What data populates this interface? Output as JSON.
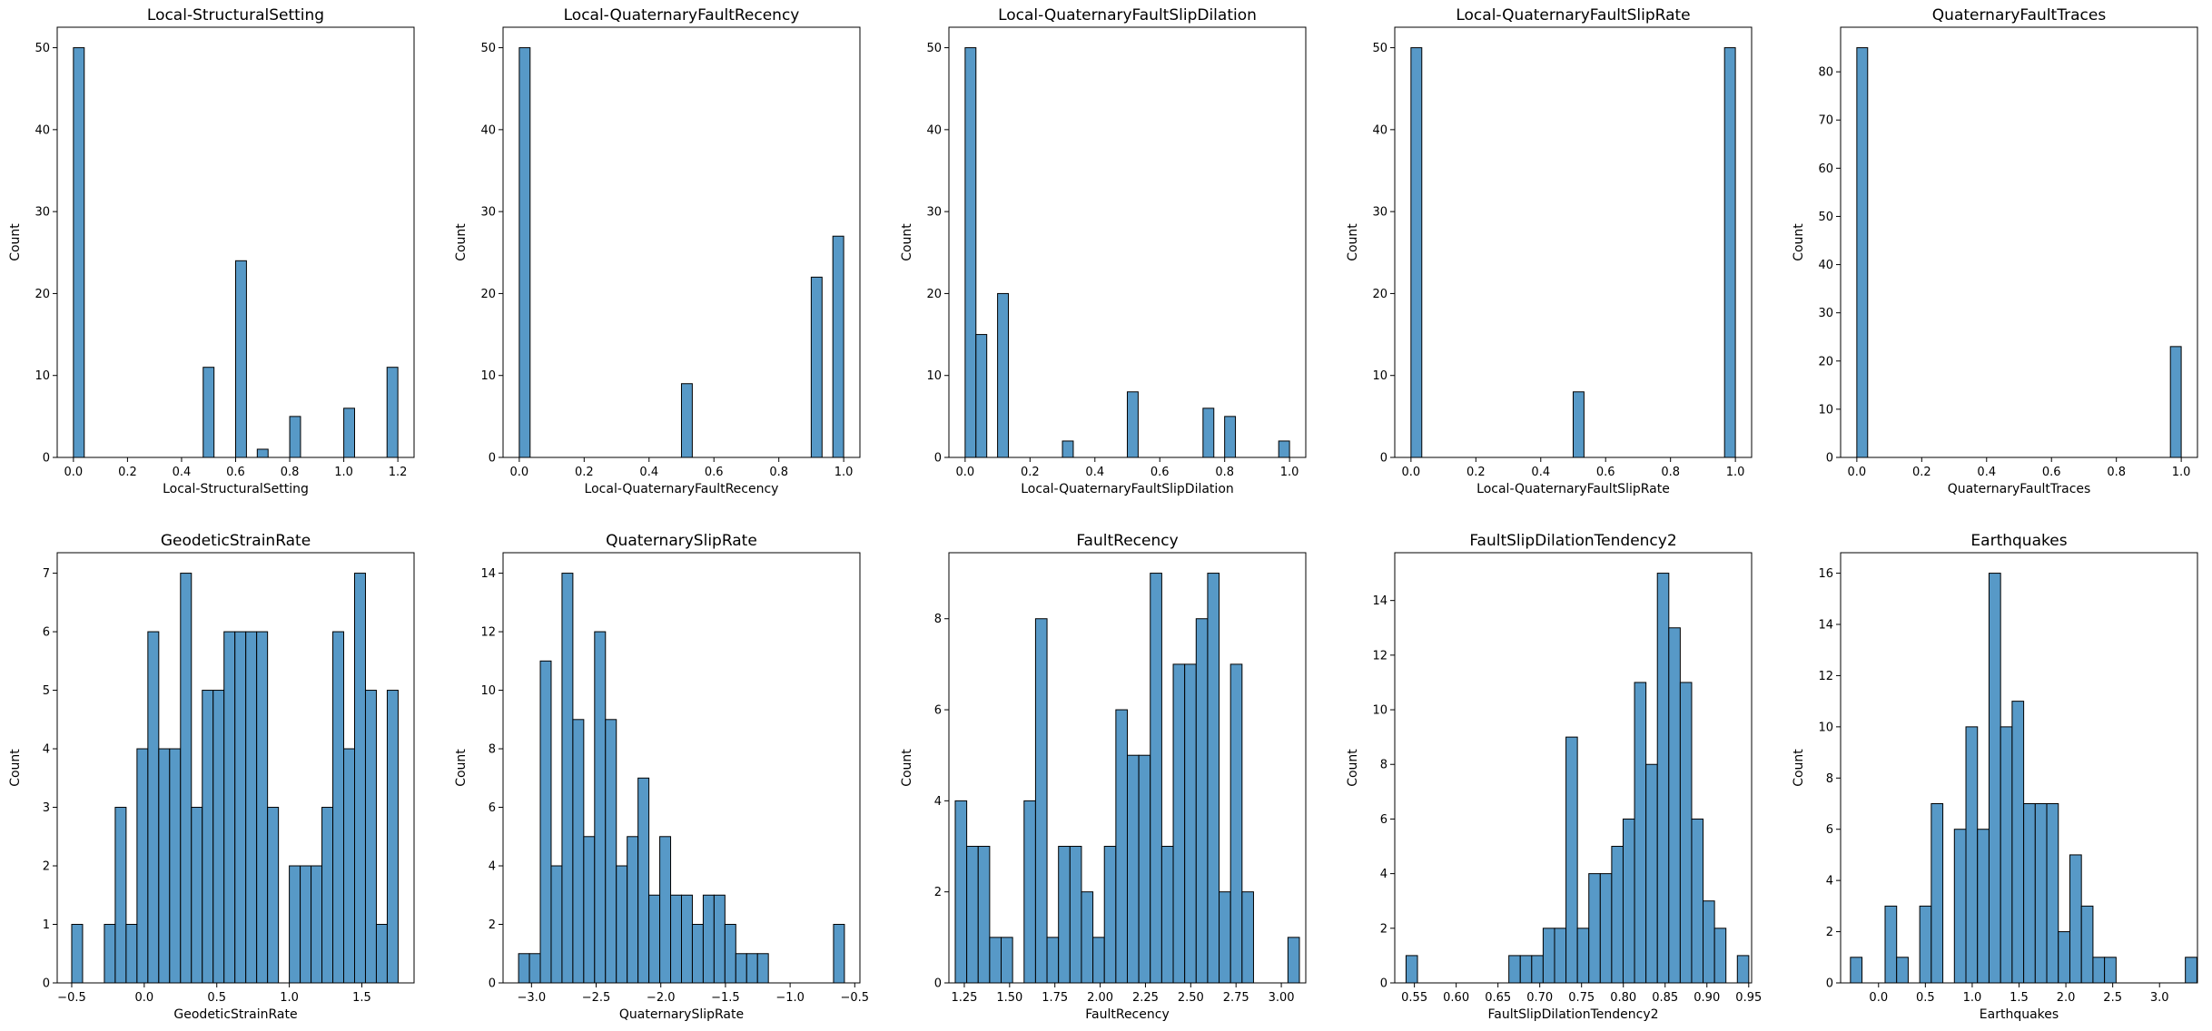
{
  "figure": {
    "layout": "2 rows x 5 columns of histograms",
    "bar_color": "#5799c7",
    "bar_edge_color": "#000000"
  },
  "chart_data": [
    {
      "type": "bar",
      "title": "Local-StructuralSetting",
      "xlabel": "Local-StructuralSetting",
      "ylabel": "Count",
      "xlim": [
        -0.06,
        1.26
      ],
      "ylim": [
        0,
        52.5
      ],
      "xticks": [
        0.0,
        0.2,
        0.4,
        0.6,
        0.8,
        1.0,
        1.2
      ],
      "xtick_labels": [
        "0.0",
        "0.2",
        "0.4",
        "0.6",
        "0.8",
        "1.0",
        "1.2"
      ],
      "yticks": [
        0,
        10,
        20,
        30,
        40,
        50
      ],
      "ytick_labels": [
        "0",
        "10",
        "20",
        "30",
        "40",
        "50"
      ],
      "bin_start": 0.0,
      "bin_width": 0.04,
      "counts": [
        50,
        0,
        0,
        0,
        0,
        0,
        0,
        0,
        0,
        0,
        0,
        0,
        11,
        0,
        0,
        24,
        0,
        1,
        0,
        0,
        5,
        0,
        0,
        0,
        0,
        6,
        0,
        0,
        0,
        11
      ]
    },
    {
      "type": "bar",
      "title": "Local-QuaternaryFaultRecency",
      "xlabel": "Local-QuaternaryFaultRecency",
      "ylabel": "Count",
      "xlim": [
        -0.05,
        1.05
      ],
      "ylim": [
        0,
        52.5
      ],
      "xticks": [
        0.0,
        0.2,
        0.4,
        0.6,
        0.8,
        1.0
      ],
      "xtick_labels": [
        "0.0",
        "0.2",
        "0.4",
        "0.6",
        "0.8",
        "1.0"
      ],
      "yticks": [
        0,
        10,
        20,
        30,
        40,
        50
      ],
      "ytick_labels": [
        "0",
        "10",
        "20",
        "30",
        "40",
        "50"
      ],
      "bin_start": 0.0,
      "bin_width": 0.03333,
      "counts": [
        50,
        0,
        0,
        0,
        0,
        0,
        0,
        0,
        0,
        0,
        0,
        0,
        0,
        0,
        0,
        9,
        0,
        0,
        0,
        0,
        0,
        0,
        0,
        0,
        0,
        0,
        0,
        22,
        0,
        27
      ]
    },
    {
      "type": "bar",
      "title": "Local-QuaternaryFaultSlipDilation",
      "xlabel": "Local-QuaternaryFaultSlipDilation",
      "ylabel": "Count",
      "xlim": [
        -0.05,
        1.05
      ],
      "ylim": [
        0,
        52.5
      ],
      "xticks": [
        0.0,
        0.2,
        0.4,
        0.6,
        0.8,
        1.0
      ],
      "xtick_labels": [
        "0.0",
        "0.2",
        "0.4",
        "0.6",
        "0.8",
        "1.0"
      ],
      "yticks": [
        0,
        10,
        20,
        30,
        40,
        50
      ],
      "ytick_labels": [
        "0",
        "10",
        "20",
        "30",
        "40",
        "50"
      ],
      "bin_start": 0.0,
      "bin_width": 0.03333,
      "counts": [
        50,
        15,
        0,
        20,
        0,
        0,
        0,
        0,
        0,
        2,
        0,
        0,
        0,
        0,
        0,
        8,
        0,
        0,
        0,
        0,
        0,
        0,
        6,
        0,
        5,
        0,
        0,
        0,
        0,
        2
      ]
    },
    {
      "type": "bar",
      "title": "Local-QuaternaryFaultSlipRate",
      "xlabel": "Local-QuaternaryFaultSlipRate",
      "ylabel": "Count",
      "xlim": [
        -0.05,
        1.05
      ],
      "ylim": [
        0,
        52.5
      ],
      "xticks": [
        0.0,
        0.2,
        0.4,
        0.6,
        0.8,
        1.0
      ],
      "xtick_labels": [
        "0.0",
        "0.2",
        "0.4",
        "0.6",
        "0.8",
        "1.0"
      ],
      "yticks": [
        0,
        10,
        20,
        30,
        40,
        50
      ],
      "ytick_labels": [
        "0",
        "10",
        "20",
        "30",
        "40",
        "50"
      ],
      "bin_start": 0.0,
      "bin_width": 0.03333,
      "counts": [
        50,
        0,
        0,
        0,
        0,
        0,
        0,
        0,
        0,
        0,
        0,
        0,
        0,
        0,
        0,
        8,
        0,
        0,
        0,
        0,
        0,
        0,
        0,
        0,
        0,
        0,
        0,
        0,
        0,
        50
      ]
    },
    {
      "type": "bar",
      "title": "QuaternaryFaultTraces",
      "xlabel": "QuaternaryFaultTraces",
      "ylabel": "Count",
      "xlim": [
        -0.05,
        1.05
      ],
      "ylim": [
        0,
        89.25
      ],
      "xticks": [
        0.0,
        0.2,
        0.4,
        0.6,
        0.8,
        1.0
      ],
      "xtick_labels": [
        "0.0",
        "0.2",
        "0.4",
        "0.6",
        "0.8",
        "1.0"
      ],
      "yticks": [
        0,
        10,
        20,
        30,
        40,
        50,
        60,
        70,
        80
      ],
      "ytick_labels": [
        "0",
        "10",
        "20",
        "30",
        "40",
        "50",
        "60",
        "70",
        "80"
      ],
      "bin_start": 0.0,
      "bin_width": 0.03333,
      "counts": [
        85,
        0,
        0,
        0,
        0,
        0,
        0,
        0,
        0,
        0,
        0,
        0,
        0,
        0,
        0,
        0,
        0,
        0,
        0,
        0,
        0,
        0,
        0,
        0,
        0,
        0,
        0,
        0,
        0,
        23
      ]
    },
    {
      "type": "bar",
      "title": "GeodeticStrainRate",
      "xlabel": "GeodeticStrainRate",
      "ylabel": "Count",
      "xlim": [
        -0.6,
        1.86
      ],
      "ylim": [
        0,
        7.35
      ],
      "xticks": [
        -0.5,
        0.0,
        0.5,
        1.0,
        1.5
      ],
      "xtick_labels": [
        "−0.5",
        "0.0",
        "0.5",
        "1.0",
        "1.5"
      ],
      "yticks": [
        0,
        1,
        2,
        3,
        4,
        5,
        6,
        7
      ],
      "ytick_labels": [
        "0",
        "1",
        "2",
        "3",
        "4",
        "5",
        "6",
        "7"
      ],
      "bin_start": -0.5,
      "bin_width": 0.075,
      "counts": [
        1,
        0,
        0,
        1,
        3,
        1,
        4,
        6,
        4,
        4,
        7,
        3,
        5,
        5,
        6,
        6,
        6,
        6,
        3,
        0,
        2,
        2,
        2,
        3,
        6,
        4,
        7,
        5,
        1,
        5
      ]
    },
    {
      "type": "bar",
      "title": "QuaternarySlipRate",
      "xlabel": "QuaternarySlipRate",
      "ylabel": "Count",
      "xlim": [
        -3.22,
        -0.46
      ],
      "ylim": [
        0,
        14.7
      ],
      "xticks": [
        -3.0,
        -2.5,
        -2.0,
        -1.5,
        -1.0,
        -0.5
      ],
      "xtick_labels": [
        "−3.0",
        "−2.5",
        "−2.0",
        "−1.5",
        "−1.0",
        "−0.5"
      ],
      "yticks": [
        0,
        2,
        4,
        6,
        8,
        10,
        12,
        14
      ],
      "ytick_labels": [
        "0",
        "2",
        "4",
        "6",
        "8",
        "10",
        "12",
        "14"
      ],
      "bin_start": -3.1,
      "bin_width": 0.084,
      "counts": [
        1,
        1,
        11,
        4,
        14,
        9,
        5,
        12,
        9,
        4,
        5,
        7,
        3,
        5,
        3,
        3,
        2,
        3,
        3,
        2,
        1,
        1,
        1,
        0,
        0,
        0,
        0,
        0,
        0,
        2
      ]
    },
    {
      "type": "bar",
      "title": "FaultRecency",
      "xlabel": "FaultRecency",
      "ylabel": "Count",
      "xlim": [
        1.165,
        3.135
      ],
      "ylim": [
        0,
        9.45
      ],
      "xticks": [
        1.25,
        1.5,
        1.75,
        2.0,
        2.25,
        2.5,
        2.75,
        3.0
      ],
      "xtick_labels": [
        "1.25",
        "1.50",
        "1.75",
        "2.00",
        "2.25",
        "2.50",
        "2.75",
        "3.00"
      ],
      "yticks": [
        0,
        2,
        4,
        6,
        8
      ],
      "ytick_labels": [
        "0",
        "2",
        "4",
        "6",
        "8"
      ],
      "bin_start": 1.2,
      "bin_width": 0.06333,
      "counts": [
        4,
        3,
        3,
        1,
        1,
        0,
        4,
        8,
        1,
        3,
        3,
        2,
        1,
        3,
        6,
        5,
        5,
        9,
        3,
        7,
        7,
        8,
        9,
        2,
        7,
        2,
        0,
        0,
        0,
        1
      ]
    },
    {
      "type": "bar",
      "title": "FaultSlipDilationTendency2",
      "xlabel": "FaultSlipDilationTendency2",
      "ylabel": "Count",
      "xlim": [
        0.5265,
        0.9535
      ],
      "ylim": [
        0,
        15.75
      ],
      "xticks": [
        0.55,
        0.6,
        0.65,
        0.7,
        0.75,
        0.8,
        0.85,
        0.9,
        0.95
      ],
      "xtick_labels": [
        "0.55",
        "0.60",
        "0.65",
        "0.70",
        "0.75",
        "0.80",
        "0.85",
        "0.90",
        "0.95"
      ],
      "yticks": [
        0,
        2,
        4,
        6,
        8,
        10,
        12,
        14
      ],
      "ytick_labels": [
        "0",
        "2",
        "4",
        "6",
        "8",
        "10",
        "12",
        "14"
      ],
      "bin_start": 0.54,
      "bin_width": 0.01367,
      "counts": [
        1,
        0,
        0,
        0,
        0,
        0,
        0,
        0,
        0,
        1,
        1,
        1,
        2,
        2,
        9,
        2,
        4,
        4,
        5,
        6,
        11,
        8,
        15,
        13,
        11,
        6,
        3,
        2,
        0,
        1
      ]
    },
    {
      "type": "bar",
      "title": "Earthquakes",
      "xlabel": "Earthquakes",
      "ylabel": "Count",
      "xlim": [
        -0.405,
        3.405
      ],
      "ylim": [
        0,
        16.8
      ],
      "xticks": [
        0.0,
        0.5,
        1.0,
        1.5,
        2.0,
        2.5,
        3.0
      ],
      "xtick_labels": [
        "0.0",
        "0.5",
        "1.0",
        "1.5",
        "2.0",
        "2.5",
        "3.0"
      ],
      "yticks": [
        0,
        2,
        4,
        6,
        8,
        10,
        12,
        14,
        16
      ],
      "ytick_labels": [
        "0",
        "2",
        "4",
        "6",
        "8",
        "10",
        "12",
        "14",
        "16"
      ],
      "bin_start": -0.3,
      "bin_width": 0.1233,
      "counts": [
        1,
        0,
        0,
        3,
        1,
        0,
        3,
        7,
        0,
        6,
        10,
        6,
        16,
        10,
        11,
        7,
        7,
        7,
        2,
        5,
        3,
        1,
        1,
        0,
        0,
        0,
        0,
        0,
        0,
        1
      ]
    }
  ]
}
